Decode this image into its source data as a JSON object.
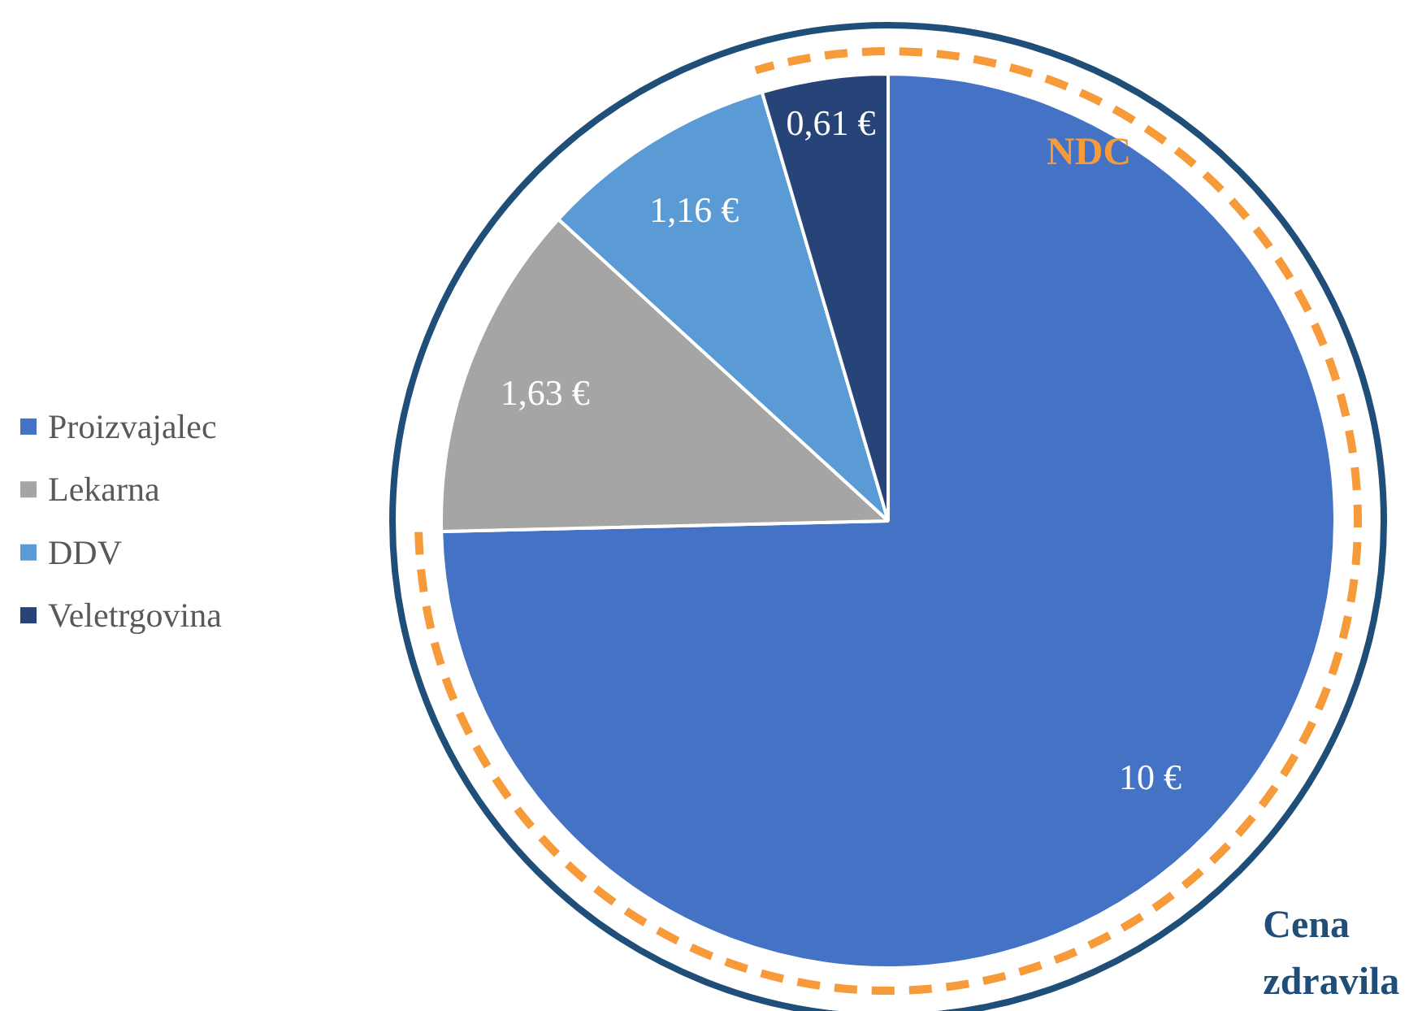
{
  "chart_data": {
    "type": "pie",
    "categories": [
      "Proizvajalec",
      "Lekarna",
      "DDV",
      "Veletrgovina"
    ],
    "values": [
      10,
      1.63,
      1.16,
      0.61
    ],
    "colors": [
      "#4472c4",
      "#a5a5a5",
      "#5b9bd5",
      "#264478"
    ],
    "value_labels": [
      "10 €",
      "1,63 €",
      "1,16 €",
      "0,61 €"
    ],
    "legend": "left",
    "annotations": [
      "NDC",
      "Cena zdravila"
    ]
  }
}
